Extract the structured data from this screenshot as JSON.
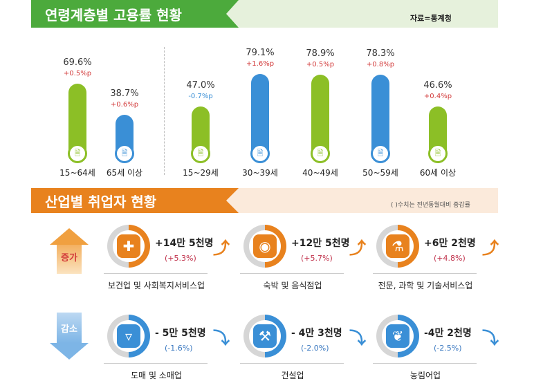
{
  "section1": {
    "title": "연령계층별 고용률 현황",
    "source": "자료=통계청"
  },
  "section2": {
    "title": "산업별 취업자 현황",
    "note": "( )수치는 전년동월대비 증감률",
    "increase_label": "증가",
    "decrease_label": "감소",
    "increase": [
      {
        "name": "보건업 및 사회복지서비스업",
        "amount": "+14만 5천명",
        "pct": "(+5.3%)",
        "icon": "medical-kit-icon"
      },
      {
        "name": "숙박 및 음식점업",
        "amount": "+12만 5천명",
        "pct": "(+5.7%)",
        "icon": "dining-plate-icon"
      },
      {
        "name": "전문, 과학 및 기술서비스업",
        "amount": "+6만 2천명",
        "pct": "(+4.8%)",
        "icon": "lab-flask-icon"
      }
    ],
    "decrease": [
      {
        "name": "도매 및 소매업",
        "amount": "- 5만 5천명",
        "pct": "(-1.6%)",
        "icon": "shopping-basket-icon"
      },
      {
        "name": "건설업",
        "amount": "- 4만 3천명",
        "pct": "(-2.0%)",
        "icon": "excavator-icon"
      },
      {
        "name": "농림어업",
        "amount": "-4만 2천명",
        "pct": "(-2.5%)",
        "icon": "wheat-icon"
      }
    ]
  },
  "colors": {
    "green": "#8cbf26",
    "blue": "#3a8fd6",
    "orange": "#e8821e",
    "red": "#d23a3a",
    "header_green": "#4caa3c"
  },
  "chart_data": {
    "type": "bar",
    "title": "연령계층별 고용률 현황",
    "unit": "%",
    "categories": [
      "15~64세",
      "65세 이상",
      "15~29세",
      "30~39세",
      "40~49세",
      "50~59세",
      "60세 이상"
    ],
    "values": [
      69.6,
      38.7,
      47.0,
      79.1,
      78.9,
      78.3,
      46.6
    ],
    "value_labels": [
      "69.6%",
      "38.7%",
      "47.0%",
      "79.1%",
      "78.9%",
      "78.3%",
      "46.6%"
    ],
    "changes": [
      0.5,
      0.6,
      -0.7,
      1.6,
      0.5,
      0.8,
      0.4
    ],
    "change_labels": [
      "+0.5%p",
      "+0.6%p",
      "-0.7%p",
      "+1.6%p",
      "+0.5%p",
      "+0.8%p",
      "+0.4%p"
    ],
    "bar_colors": [
      "green",
      "blue",
      "green",
      "blue",
      "green",
      "blue",
      "green"
    ]
  }
}
